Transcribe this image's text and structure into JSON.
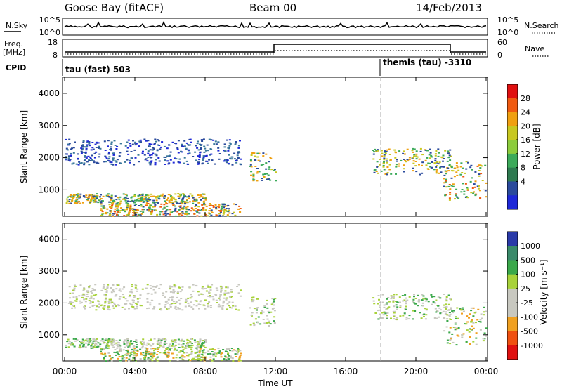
{
  "header": {
    "station": "Goose Bay (fitACF)",
    "beam": "Beam 00",
    "date": "14/Feb/2013"
  },
  "noise_panel": {
    "left_label": "N.Sky",
    "right_label": "N.Search",
    "left_ticks": [
      "10^5",
      "10^0"
    ],
    "right_ticks": [
      "10^5",
      "10^0"
    ]
  },
  "freq_panel": {
    "left_label_1": "Freq.",
    "left_label_2": "[MHz]",
    "right_label": "Nave",
    "left_ticks": [
      "18",
      "8"
    ],
    "right_ticks": [
      "60",
      "0"
    ]
  },
  "cpid_panel": {
    "label": "CPID",
    "mode_1": "tau (fast) 503",
    "mode_2": "themis (tau) -3310",
    "mode_2_start_hour": 18.0
  },
  "chart_data": [
    {
      "type": "heatmap",
      "panel": "power",
      "ylabel": "Slant Range [km]",
      "yticks": [
        1000,
        2000,
        3000,
        4000
      ],
      "ylim": [
        180,
        4500
      ],
      "colorbar_label": "Power [dB]",
      "colorbar_ticks": [
        "28",
        "24",
        "20",
        "16",
        "12",
        "8",
        "4"
      ],
      "colorbar_colors": [
        "#e01010",
        "#f05a10",
        "#f0a010",
        "#c8c820",
        "#8ccc3c",
        "#3caa5a",
        "#2e7a50",
        "#2a4a9c",
        "#1e28d8"
      ],
      "echo_regions": [
        {
          "hours": [
            0.0,
            10.0
          ],
          "range_km": [
            1800,
            2600
          ],
          "level": "low"
        },
        {
          "hours": [
            10.5,
            12.0
          ],
          "range_km": [
            1300,
            2200
          ],
          "level": "mid"
        },
        {
          "hours": [
            17.5,
            22.0
          ],
          "range_km": [
            1500,
            2300
          ],
          "level": "mid"
        },
        {
          "hours": [
            21.5,
            24.0
          ],
          "range_km": [
            700,
            1900
          ],
          "level": "high"
        },
        {
          "hours": [
            0.0,
            8.0
          ],
          "range_km": [
            600,
            900
          ],
          "level": "mid"
        },
        {
          "hours": [
            2.0,
            10.0
          ],
          "range_km": [
            200,
            600
          ],
          "level": "high"
        }
      ]
    },
    {
      "type": "heatmap",
      "panel": "velocity",
      "ylabel": "Slant Range [km]",
      "yticks": [
        1000,
        2000,
        3000,
        4000
      ],
      "ylim": [
        180,
        4500
      ],
      "colorbar_label": "Velocity [m s⁻¹]",
      "colorbar_ticks": [
        "1000",
        "500",
        "100",
        "25",
        "-25",
        "-100",
        "-500",
        "-1000"
      ],
      "colorbar_colors": [
        "#2a3aa8",
        "#3a8a6a",
        "#3aa84a",
        "#a8d23a",
        "#c8c8c0",
        "#c8c8c0",
        "#f0a020",
        "#f05010",
        "#e01010"
      ],
      "xlabel": "Time UT",
      "xticks": [
        "00:00",
        "04:00",
        "08:00",
        "12:00",
        "16:00",
        "20:00",
        "00:00"
      ],
      "xlim_hours": [
        0,
        24
      ]
    }
  ]
}
